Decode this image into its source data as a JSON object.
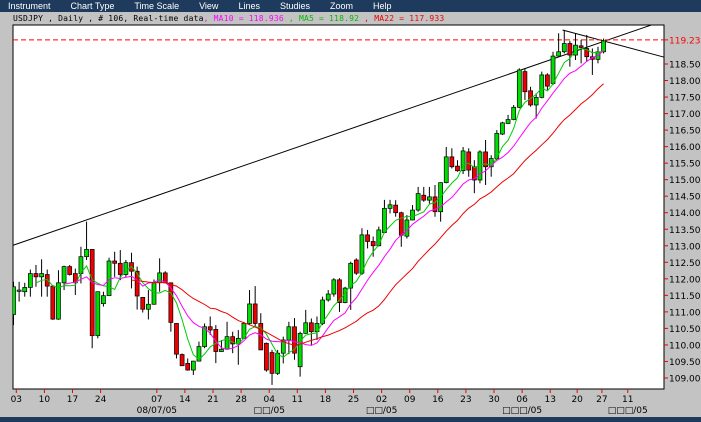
{
  "menu": [
    "Instrument",
    "Chart Type",
    "Time Scale",
    "View",
    "Lines",
    "Studies",
    "Zoom",
    "Help"
  ],
  "header": {
    "main": "USDJPY , Daily , # 106, Real-time data",
    "ma10": ", MA10 = 118.936",
    "ma5": " , MA5 = 118.92",
    "ma22": " , MA22 = 117.933"
  },
  "colors": {
    "up": "#00dd00",
    "down": "#ee0000",
    "ma10": "#ff00ff",
    "ma5": "#00cc00",
    "ma22": "#ee0000",
    "last": "#ff0000",
    "menubar": "#1e3a5c"
  },
  "chart_data": {
    "type": "candlestick",
    "symbol": "USDJPY",
    "interval": "Daily",
    "ylim": [
      108.55,
      119.6
    ],
    "y_ticks": [
      118.5,
      118.0,
      117.5,
      117.0,
      116.5,
      116.0,
      115.5,
      115.0,
      114.5,
      114.0,
      113.5,
      113.0,
      112.5,
      112.0,
      111.5,
      111.0,
      110.5,
      110.0,
      109.5,
      109.0
    ],
    "y_tick_labels": [
      "118.50",
      "118.00",
      "117.50",
      "117.00",
      "116.50",
      "116.00",
      "115.50",
      "115.00",
      "114.50",
      "114.00",
      "113.50",
      "113.00",
      "112.50",
      "112.00",
      "111.50",
      "111.00",
      "110.50",
      "110.00",
      "109.50",
      "109.00"
    ],
    "last_price": 119.23,
    "last_price_label": "119.23",
    "x_ticks": [
      {
        "i": 0.5,
        "label": "03"
      },
      {
        "i": 5.5,
        "label": "10"
      },
      {
        "i": 10.5,
        "label": "17"
      },
      {
        "i": 15.5,
        "label": "24"
      },
      {
        "i": 25.5,
        "label": "07"
      },
      {
        "i": 30.5,
        "label": "14"
      },
      {
        "i": 35.5,
        "label": "21"
      },
      {
        "i": 40.5,
        "label": "28"
      },
      {
        "i": 45.5,
        "label": "04"
      },
      {
        "i": 50.5,
        "label": "11"
      },
      {
        "i": 55.5,
        "label": "18"
      },
      {
        "i": 60.5,
        "label": "25"
      },
      {
        "i": 65.5,
        "label": "02"
      },
      {
        "i": 70.5,
        "label": "09"
      },
      {
        "i": 75.5,
        "label": "16"
      },
      {
        "i": 80.5,
        "label": "23"
      },
      {
        "i": 85.5,
        "label": "30"
      },
      {
        "i": 90.5,
        "label": "06"
      },
      {
        "i": 95.5,
        "label": "13"
      },
      {
        "i": 100.3,
        "label": "20"
      },
      {
        "i": 104.7,
        "label": "27"
      },
      {
        "i": 109.3,
        "label": "11"
      }
    ],
    "month_labels": [
      {
        "i": 25.5,
        "label": "08/07/05"
      },
      {
        "i": 45.5,
        "label": "□□/05"
      },
      {
        "i": 65.5,
        "label": "□□/05"
      },
      {
        "i": 90.5,
        "label": "□□□/05"
      },
      {
        "i": 109.3,
        "label": "□□□/05"
      }
    ],
    "moving_averages": [
      {
        "name": "MA5",
        "period": 5,
        "color": "#00cc00"
      },
      {
        "name": "MA10",
        "period": 10,
        "color": "#ff00ff"
      },
      {
        "name": "MA22",
        "period": 22,
        "color": "#ee0000"
      }
    ],
    "trendlines": [
      {
        "from": {
          "i": 0,
          "price": 113.02
        },
        "to": {
          "i": 115.7,
          "price": 119.81
        }
      },
      {
        "from": {
          "i": 97.7,
          "price": 119.53
        },
        "to": {
          "i": 115.7,
          "price": 118.71
        }
      }
    ],
    "ohlc": [
      [
        110.92,
        111.91,
        110.6,
        111.76
      ],
      [
        111.62,
        111.91,
        111.31,
        111.66
      ],
      [
        111.61,
        111.88,
        111.46,
        111.74
      ],
      [
        111.74,
        112.28,
        111.46,
        112.16
      ],
      [
        112.16,
        112.42,
        111.76,
        112.06
      ],
      [
        112.06,
        112.59,
        111.46,
        112.16
      ],
      [
        112.13,
        112.28,
        111.46,
        111.78
      ],
      [
        111.78,
        111.81,
        110.76,
        110.78
      ],
      [
        110.78,
        112.26,
        110.76,
        111.88
      ],
      [
        111.88,
        112.4,
        111.66,
        112.37
      ],
      [
        112.37,
        112.42,
        112.1,
        112.13
      ],
      [
        112.16,
        112.31,
        111.51,
        111.88
      ],
      [
        112.16,
        112.97,
        111.86,
        112.67
      ],
      [
        112.67,
        113.73,
        112.57,
        112.89
      ],
      [
        112.89,
        112.9,
        109.9,
        110.28
      ],
      [
        110.28,
        111.62,
        110.2,
        111.61
      ],
      [
        111.25,
        111.61,
        111.16,
        111.49
      ],
      [
        111.49,
        112.64,
        111.48,
        112.54
      ],
      [
        112.54,
        112.82,
        112.06,
        112.47
      ],
      [
        112.47,
        112.87,
        111.96,
        112.13
      ],
      [
        112.13,
        112.57,
        112.06,
        112.49
      ],
      [
        112.49,
        112.79,
        111.71,
        112.23
      ],
      [
        112.23,
        112.37,
        111.07,
        111.48
      ],
      [
        111.44,
        111.44,
        110.98,
        111.08
      ],
      [
        111.08,
        111.66,
        110.77,
        111.23
      ],
      [
        111.23,
        111.98,
        111.22,
        111.88
      ],
      [
        111.88,
        112.62,
        111.61,
        112.18
      ],
      [
        112.18,
        112.23,
        111.86,
        111.88
      ],
      [
        111.88,
        111.89,
        110.4,
        110.68
      ],
      [
        110.65,
        110.66,
        109.59,
        109.72
      ],
      [
        109.71,
        109.74,
        109.36,
        109.37
      ],
      [
        109.44,
        109.59,
        109.22,
        109.24
      ],
      [
        109.24,
        109.52,
        109.09,
        109.51
      ],
      [
        109.51,
        110.1,
        109.5,
        109.95
      ],
      [
        109.95,
        110.65,
        109.9,
        110.55
      ],
      [
        110.55,
        110.86,
        110.3,
        110.45
      ],
      [
        110.47,
        110.6,
        109.45,
        109.8
      ],
      [
        109.8,
        110.15,
        109.79,
        109.87
      ],
      [
        109.87,
        110.7,
        109.85,
        110.25
      ],
      [
        110.25,
        110.4,
        109.75,
        110.03
      ],
      [
        110.03,
        110.45,
        109.4,
        110.2
      ],
      [
        110.2,
        110.7,
        110.19,
        110.65
      ],
      [
        110.65,
        111.66,
        110.6,
        111.24
      ],
      [
        111.24,
        111.78,
        110.55,
        110.65
      ],
      [
        110.65,
        110.96,
        109.84,
        109.85
      ],
      [
        110.05,
        110.07,
        109.19,
        109.24
      ],
      [
        109.77,
        109.85,
        108.79,
        109.14
      ],
      [
        109.14,
        109.85,
        109.09,
        109.75
      ],
      [
        109.75,
        110.25,
        109.44,
        110.15
      ],
      [
        110.15,
        110.7,
        109.72,
        110.55
      ],
      [
        110.55,
        110.81,
        109.55,
        109.75
      ],
      [
        109.34,
        110.4,
        109.04,
        110.35
      ],
      [
        110.35,
        111.06,
        110.34,
        110.67
      ],
      [
        110.67,
        110.8,
        110.0,
        110.4
      ],
      [
        110.4,
        110.86,
        110.15,
        110.65
      ],
      [
        110.65,
        111.46,
        110.6,
        111.36
      ],
      [
        111.36,
        111.66,
        111.31,
        111.54
      ],
      [
        111.54,
        112.02,
        111.46,
        111.97
      ],
      [
        111.97,
        112.02,
        111.0,
        111.28
      ],
      [
        111.28,
        111.76,
        111.26,
        111.72
      ],
      [
        111.72,
        112.52,
        111.06,
        112.47
      ],
      [
        112.57,
        112.62,
        112.12,
        112.17
      ],
      [
        112.17,
        113.53,
        112.12,
        113.33
      ],
      [
        113.33,
        113.48,
        112.92,
        113.13
      ],
      [
        113.13,
        113.28,
        112.67,
        113.0
      ],
      [
        113.0,
        113.58,
        112.98,
        113.48
      ],
      [
        113.4,
        114.39,
        113.38,
        114.13
      ],
      [
        114.13,
        114.39,
        113.98,
        114.24
      ],
      [
        114.23,
        114.38,
        113.88,
        114.0
      ],
      [
        114.0,
        114.03,
        112.97,
        113.32
      ],
      [
        113.29,
        113.93,
        113.22,
        113.78
      ],
      [
        113.78,
        114.23,
        113.77,
        114.08
      ],
      [
        114.08,
        114.78,
        114.03,
        114.58
      ],
      [
        114.53,
        114.78,
        114.33,
        114.38
      ],
      [
        114.38,
        114.78,
        114.28,
        114.48
      ],
      [
        114.48,
        114.84,
        113.88,
        114.03
      ],
      [
        114.03,
        114.92,
        113.73,
        114.91
      ],
      [
        114.91,
        115.99,
        114.89,
        115.69
      ],
      [
        115.69,
        115.95,
        115.34,
        115.39
      ],
      [
        115.41,
        115.59,
        115.24,
        115.27
      ],
      [
        115.27,
        115.99,
        115.17,
        115.87
      ],
      [
        115.84,
        115.95,
        115.09,
        115.29
      ],
      [
        115.39,
        115.59,
        114.59,
        114.99
      ],
      [
        114.99,
        115.89,
        114.89,
        115.84
      ],
      [
        115.84,
        116.2,
        114.84,
        115.39
      ],
      [
        115.39,
        115.74,
        115.09,
        115.64
      ],
      [
        115.64,
        116.5,
        115.59,
        116.4
      ],
      [
        116.38,
        116.75,
        116.35,
        116.72
      ],
      [
        116.7,
        116.96,
        116.68,
        116.82
      ],
      [
        116.82,
        117.26,
        116.8,
        117.19
      ],
      [
        117.19,
        118.37,
        117.16,
        118.32
      ],
      [
        118.27,
        118.37,
        117.41,
        117.66
      ],
      [
        117.69,
        117.81,
        117.21,
        117.26
      ],
      [
        117.26,
        117.61,
        116.85,
        117.49
      ],
      [
        117.49,
        118.27,
        117.46,
        118.17
      ],
      [
        118.17,
        118.22,
        117.71,
        117.83
      ],
      [
        117.91,
        118.87,
        117.86,
        118.74
      ],
      [
        118.74,
        119.43,
        118.77,
        118.87
      ],
      [
        118.87,
        119.53,
        118.82,
        119.12
      ],
      [
        119.12,
        119.2,
        118.42,
        118.77
      ],
      [
        118.77,
        119.43,
        118.62,
        119.07
      ],
      [
        119.05,
        119.23,
        118.52,
        119.0
      ],
      [
        118.97,
        119.38,
        118.57,
        118.72
      ],
      [
        118.72,
        118.97,
        118.17,
        118.64
      ],
      [
        118.64,
        119.02,
        118.52,
        118.87
      ],
      [
        118.87,
        119.27,
        118.82,
        119.2
      ]
    ]
  }
}
